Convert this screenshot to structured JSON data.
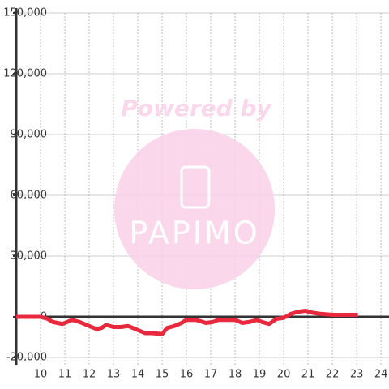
{
  "chart_data": {
    "type": "line",
    "watermark": [
      "Powered by",
      "PAPIMO"
    ],
    "x": [
      9.0,
      9.5,
      10.0,
      10.3,
      10.5,
      10.9,
      11.3,
      11.6,
      12.0,
      12.3,
      12.5,
      12.7,
      13.0,
      13.3,
      13.6,
      14.0,
      14.3,
      14.6,
      15.0,
      15.2,
      15.5,
      15.8,
      16.0,
      16.4,
      16.8,
      17.1,
      17.3,
      17.6,
      18.0,
      18.3,
      18.6,
      18.9,
      19.1,
      19.4,
      19.7,
      20.0,
      20.3,
      20.6,
      20.9,
      21.2,
      21.5,
      22.0,
      22.5,
      23.05
    ],
    "series": [
      {
        "color": "#e8283c",
        "values": [
          0,
          0,
          0,
          -1000,
          -2500,
          -3500,
          -1500,
          -2500,
          -4500,
          -6000,
          -5500,
          -4000,
          -5000,
          -5000,
          -4500,
          -6500,
          -8000,
          -8000,
          -8500,
          -5500,
          -4500,
          -3000,
          -1500,
          -1500,
          -3000,
          -2500,
          -1500,
          -1500,
          -1500,
          -3000,
          -2500,
          -1500,
          -2500,
          -3500,
          -1000,
          -500,
          1500,
          2500,
          3000,
          2000,
          1500,
          1000,
          1000,
          1000
        ]
      }
    ],
    "xlim": [
      9,
      24.33
    ],
    "xticks": [
      10,
      11,
      12,
      13,
      14,
      15,
      16,
      17,
      18,
      19,
      20,
      21,
      22,
      23,
      24
    ],
    "ylim": [
      -20000,
      150000
    ],
    "yticks": [
      {
        "value": -20000,
        "label": "-20,000"
      },
      0,
      {
        "value": 30000,
        "label": "30,000"
      },
      {
        "value": 60000,
        "label": "60,000"
      },
      {
        "value": 90000,
        "label": "90,000"
      },
      {
        "value": 120000,
        "label": "120,000"
      },
      {
        "value": 150000,
        "label": "150,000"
      }
    ],
    "grid": true
  }
}
